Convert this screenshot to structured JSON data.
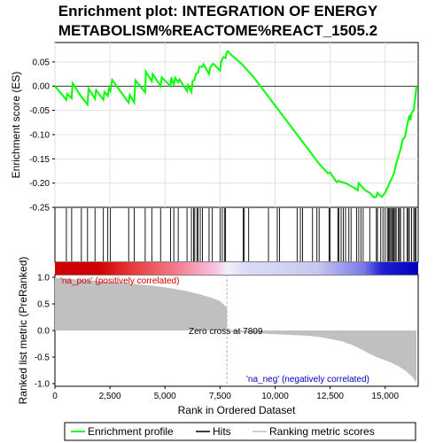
{
  "chart_data": {
    "type": "line",
    "title_line1": "Enrichment plot: INTEGRATION OF ENERGY",
    "title_line2": "METABOLISM%REACTOME%REACT_1505.2",
    "xlabel": "Rank in Ordered Dataset",
    "ylabel_top": "Enrichment score (ES)",
    "ylabel_bottom": "Ranked list metric (PreRanked)",
    "x_ticks": [
      0,
      2500,
      5000,
      7500,
      10000,
      12500,
      15000
    ],
    "x_tick_labels": [
      "0",
      "2,500",
      "5,000",
      "7,500",
      "10,000",
      "12,500",
      "15,000"
    ],
    "es_ylim": [
      -0.25,
      0.09
    ],
    "es_ticks": [
      0.05,
      0.0,
      -0.05,
      -0.1,
      -0.15,
      -0.2,
      -0.25
    ],
    "es_tick_labels": [
      "0.05",
      "0.00",
      "-0.05",
      "-0.10",
      "-0.15",
      "-0.20",
      "-0.25"
    ],
    "metric_ylim": [
      -1.05,
      1.05
    ],
    "metric_ticks": [
      1.0,
      0.5,
      0.0,
      -0.5,
      -1.0
    ],
    "metric_tick_labels": [
      "1.0",
      "0.5",
      "0.0",
      "-0.5",
      "-1.0"
    ],
    "xlim": [
      0,
      16500
    ],
    "n_genes": 16500,
    "zero_cross": 7809,
    "zero_cross_label": "Zero cross at 7809",
    "pos_label": "'na_pos' (positively correlated)",
    "neg_label": "'na_neg' (negatively correlated)",
    "es_series": {
      "name": "Enrichment profile",
      "x": [
        0,
        520,
        560,
        760,
        800,
        1200,
        1480,
        1530,
        1820,
        1870,
        2200,
        2250,
        2400,
        2460,
        2520,
        2600,
        3350,
        3400,
        3600,
        3660,
        4100,
        4130,
        4400,
        4440,
        4800,
        4850,
        5250,
        5290,
        5400,
        5460,
        5600,
        5650,
        6000,
        6050,
        6200,
        6250,
        6350,
        6400,
        6500,
        6560,
        6700,
        6750,
        7000,
        7050,
        7150,
        7200,
        7500,
        7540,
        7600,
        7650,
        7750,
        7800,
        7850,
        8000,
        8500,
        9000,
        9500,
        10000,
        10500,
        11000,
        11500,
        12000,
        12400,
        12500,
        12700,
        12800,
        12900,
        13000,
        13200,
        13400,
        13600,
        13750,
        13800,
        13900,
        14100,
        14300,
        14500,
        14600,
        14650,
        14750,
        14850,
        15000,
        15100,
        15200,
        15300,
        15400,
        15500,
        15600,
        15700,
        15800,
        15900,
        16000,
        16100,
        16150,
        16200,
        16300,
        16350,
        16400,
        16420
      ],
      "y": [
        0.0,
        -0.028,
        -0.016,
        -0.025,
        0.006,
        -0.022,
        -0.038,
        -0.005,
        -0.026,
        -0.008,
        -0.028,
        -0.012,
        -0.02,
        -0.005,
        -0.01,
        0.013,
        -0.034,
        -0.018,
        -0.034,
        0.012,
        -0.013,
        0.03,
        0.01,
        0.025,
        0.0,
        0.018,
        0.0,
        0.018,
        0.002,
        0.017,
        0.008,
        0.014,
        -0.01,
        0.002,
        -0.012,
        0.01,
        0.014,
        0.025,
        0.028,
        0.04,
        0.04,
        0.045,
        0.025,
        0.038,
        0.045,
        0.046,
        0.032,
        0.05,
        0.055,
        0.06,
        0.058,
        0.07,
        0.072,
        0.065,
        0.045,
        0.02,
        -0.01,
        -0.04,
        -0.07,
        -0.1,
        -0.13,
        -0.16,
        -0.18,
        -0.178,
        -0.192,
        -0.198,
        -0.195,
        -0.198,
        -0.2,
        -0.205,
        -0.21,
        -0.215,
        -0.2,
        -0.205,
        -0.215,
        -0.22,
        -0.23,
        -0.228,
        -0.22,
        -0.225,
        -0.228,
        -0.22,
        -0.21,
        -0.2,
        -0.19,
        -0.18,
        -0.16,
        -0.145,
        -0.13,
        -0.11,
        -0.105,
        -0.08,
        -0.06,
        -0.07,
        -0.055,
        -0.05,
        -0.03,
        -0.01,
        0.0
      ]
    },
    "hits_positions": [
      520,
      760,
      1200,
      1480,
      1820,
      2200,
      2400,
      2520,
      3350,
      3600,
      4100,
      4400,
      4800,
      5250,
      5400,
      5600,
      6000,
      6200,
      6300,
      6350,
      6450,
      6500,
      6600,
      6700,
      7000,
      7150,
      7500,
      7600,
      7700,
      7750,
      8550,
      8600,
      8800,
      9700,
      10100,
      10200,
      11000,
      11150,
      11250,
      11700,
      11900,
      12000,
      12450,
      12500,
      12850,
      12900,
      13000,
      13100,
      13200,
      13350,
      13450,
      13700,
      13800,
      13900,
      14000,
      14300,
      14600,
      14650,
      14800,
      14900,
      15000,
      15100,
      15150,
      15200,
      15250,
      15300,
      15350,
      15400,
      15450,
      15500,
      15600,
      15650,
      15700,
      15850,
      16000,
      16050,
      16100,
      16200,
      16300,
      16350,
      16400
    ],
    "metric_series": {
      "name": "Ranking metric scores",
      "x": [
        0,
        100,
        300,
        600,
        1000,
        1500,
        2000,
        2500,
        3000,
        3500,
        4000,
        4500,
        5000,
        5500,
        6000,
        6500,
        7000,
        7300,
        7500,
        7700,
        7809,
        7810,
        8500,
        9500,
        10500,
        11500,
        12000,
        12500,
        13000,
        13500,
        14000,
        14300,
        14600,
        15000,
        15300,
        15600,
        15900,
        16100,
        16250,
        16350,
        16420
      ],
      "y": [
        1.0,
        0.99,
        0.98,
        0.97,
        0.96,
        0.95,
        0.93,
        0.91,
        0.9,
        0.88,
        0.86,
        0.84,
        0.81,
        0.78,
        0.74,
        0.69,
        0.63,
        0.59,
        0.55,
        0.48,
        0.42,
        -0.02,
        -0.04,
        -0.06,
        -0.08,
        -0.1,
        -0.12,
        -0.16,
        -0.2,
        -0.27,
        -0.37,
        -0.44,
        -0.5,
        -0.56,
        -0.61,
        -0.67,
        -0.75,
        -0.82,
        -0.88,
        -0.94,
        -0.98
      ]
    },
    "colors": {
      "es_line": "#00ff00",
      "hit_line": "#000000",
      "metric_fill": "#c0c0c0",
      "zero_line": "#b0b0b0",
      "pos_text": "#d00000",
      "neg_text": "#0000c0",
      "bar_pos": "#d00000",
      "bar_neg": "#0000c0"
    },
    "legend": [
      {
        "label": "Enrichment profile",
        "kind": "line",
        "color": "#00ff00"
      },
      {
        "label": "Hits",
        "kind": "line",
        "color": "#000000"
      },
      {
        "label": "Ranking metric scores",
        "kind": "line",
        "color": "#c0c0c0"
      }
    ]
  }
}
